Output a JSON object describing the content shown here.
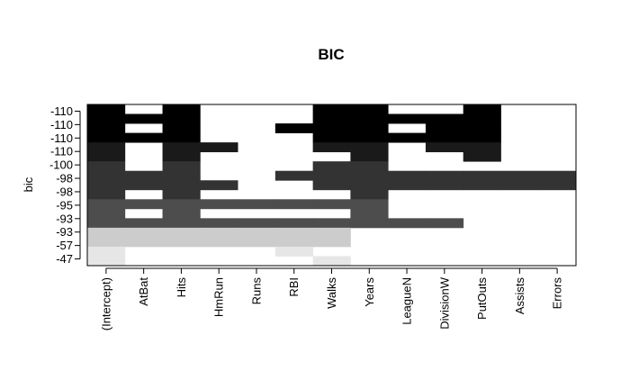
{
  "chart_data": {
    "type": "heatmap",
    "title": "BIC",
    "xlabel": "",
    "ylabel": "bic",
    "x_labels": [
      "(Intercept)",
      "AtBat",
      "Hits",
      "HmRun",
      "Runs",
      "RBI",
      "Walks",
      "Years",
      "LeagueN",
      "DivisionW",
      "PutOuts",
      "Assists",
      "Errors"
    ],
    "y_tick_labels_top_to_bottom": [
      "-110",
      "-110",
      "-110",
      "-110",
      "-100",
      "-98",
      "-98",
      "-95",
      "-93",
      "-93",
      "-57",
      "-47"
    ],
    "bands_top_to_bottom": [
      {
        "bic": "-110",
        "rows": 4,
        "fill": "#000000"
      },
      {
        "bic": "-100",
        "rows": 2,
        "fill": "#1a1a1a"
      },
      {
        "bic": "-98",
        "rows": 4,
        "fill": "#333333"
      },
      {
        "bic": "-93",
        "rows": 3,
        "fill": "#4d4d4d"
      },
      {
        "bic": "-57",
        "rows": 2,
        "fill": "#cccccc"
      },
      {
        "bic": "-47",
        "rows": 2,
        "fill": "#e6e6e6"
      }
    ],
    "rows_top_to_bottom": [
      [
        1,
        0,
        1,
        0,
        0,
        0,
        1,
        1,
        0,
        0,
        1,
        0,
        0
      ],
      [
        1,
        1,
        1,
        0,
        0,
        0,
        1,
        1,
        1,
        1,
        1,
        0,
        0
      ],
      [
        1,
        0,
        1,
        0,
        0,
        1,
        1,
        1,
        0,
        1,
        1,
        0,
        0
      ],
      [
        1,
        1,
        1,
        0,
        0,
        0,
        1,
        1,
        1,
        1,
        1,
        0,
        0
      ],
      [
        1,
        0,
        1,
        1,
        0,
        0,
        1,
        1,
        0,
        1,
        1,
        0,
        0
      ],
      [
        1,
        0,
        1,
        0,
        0,
        0,
        0,
        1,
        0,
        0,
        1,
        0,
        0
      ],
      [
        1,
        0,
        1,
        0,
        0,
        0,
        1,
        1,
        0,
        0,
        0,
        0,
        0
      ],
      [
        1,
        1,
        1,
        0,
        0,
        1,
        1,
        1,
        1,
        1,
        1,
        1,
        1
      ],
      [
        1,
        1,
        1,
        1,
        0,
        0,
        1,
        1,
        1,
        1,
        1,
        1,
        1
      ],
      [
        1,
        0,
        1,
        0,
        0,
        0,
        0,
        1,
        0,
        0,
        0,
        0,
        0
      ],
      [
        1,
        1,
        1,
        1,
        1,
        1,
        1,
        1,
        0,
        0,
        0,
        0,
        0
      ],
      [
        1,
        0,
        1,
        0,
        0,
        0,
        0,
        1,
        0,
        0,
        0,
        0,
        0
      ],
      [
        1,
        1,
        1,
        1,
        1,
        1,
        1,
        1,
        1,
        1,
        0,
        0,
        0
      ],
      [
        1,
        1,
        1,
        1,
        1,
        1,
        1,
        0,
        0,
        0,
        0,
        0,
        0
      ],
      [
        1,
        1,
        1,
        1,
        1,
        1,
        1,
        0,
        0,
        0,
        0,
        0,
        0
      ],
      [
        1,
        0,
        0,
        0,
        0,
        1,
        0,
        0,
        0,
        0,
        0,
        0,
        0
      ],
      [
        1,
        0,
        0,
        0,
        0,
        0,
        1,
        0,
        0,
        0,
        0,
        0,
        0
      ]
    ]
  }
}
